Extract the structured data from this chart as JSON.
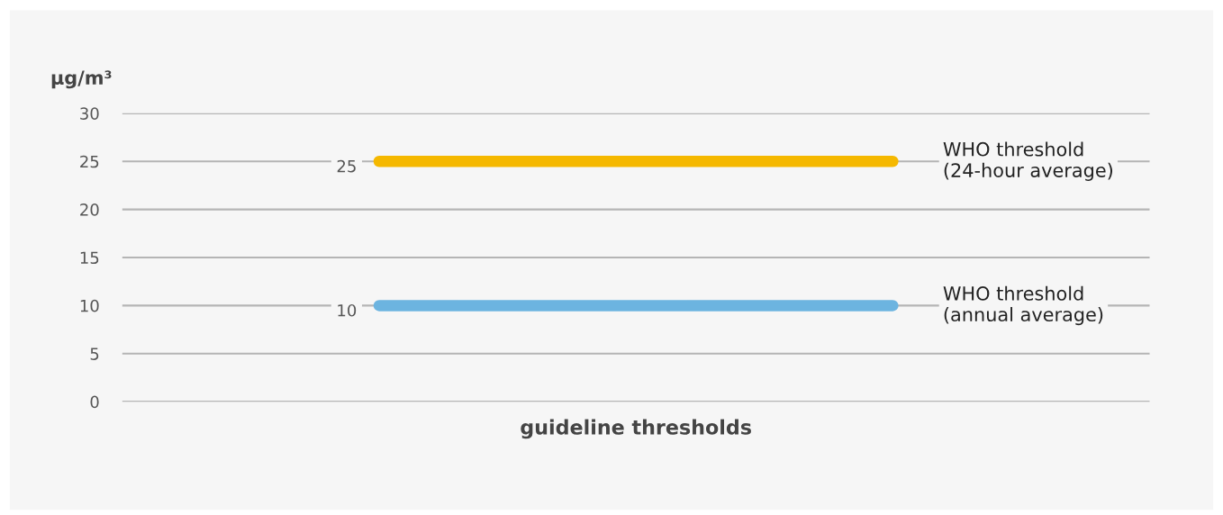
{
  "chart_data": {
    "type": "line",
    "ylabel": "μg/m³",
    "xlabel": "guideline thresholds",
    "categories": [
      null,
      null
    ],
    "ylim": [
      0,
      30
    ],
    "yticks": [
      0,
      5,
      10,
      15,
      20,
      25,
      30
    ],
    "grid": "y",
    "legend": false,
    "tick_labels": "y",
    "series": [
      {
        "name": "WHO threshold\n(24-hour average)",
        "color": "#f5b800",
        "values": [
          25,
          25
        ],
        "value_labels": [
          "25",
          null
        ]
      },
      {
        "name": "WHO threshold\n(annual average)",
        "color": "#6cb4e0",
        "values": [
          10,
          10
        ],
        "value_labels": [
          "10",
          null
        ]
      }
    ]
  }
}
